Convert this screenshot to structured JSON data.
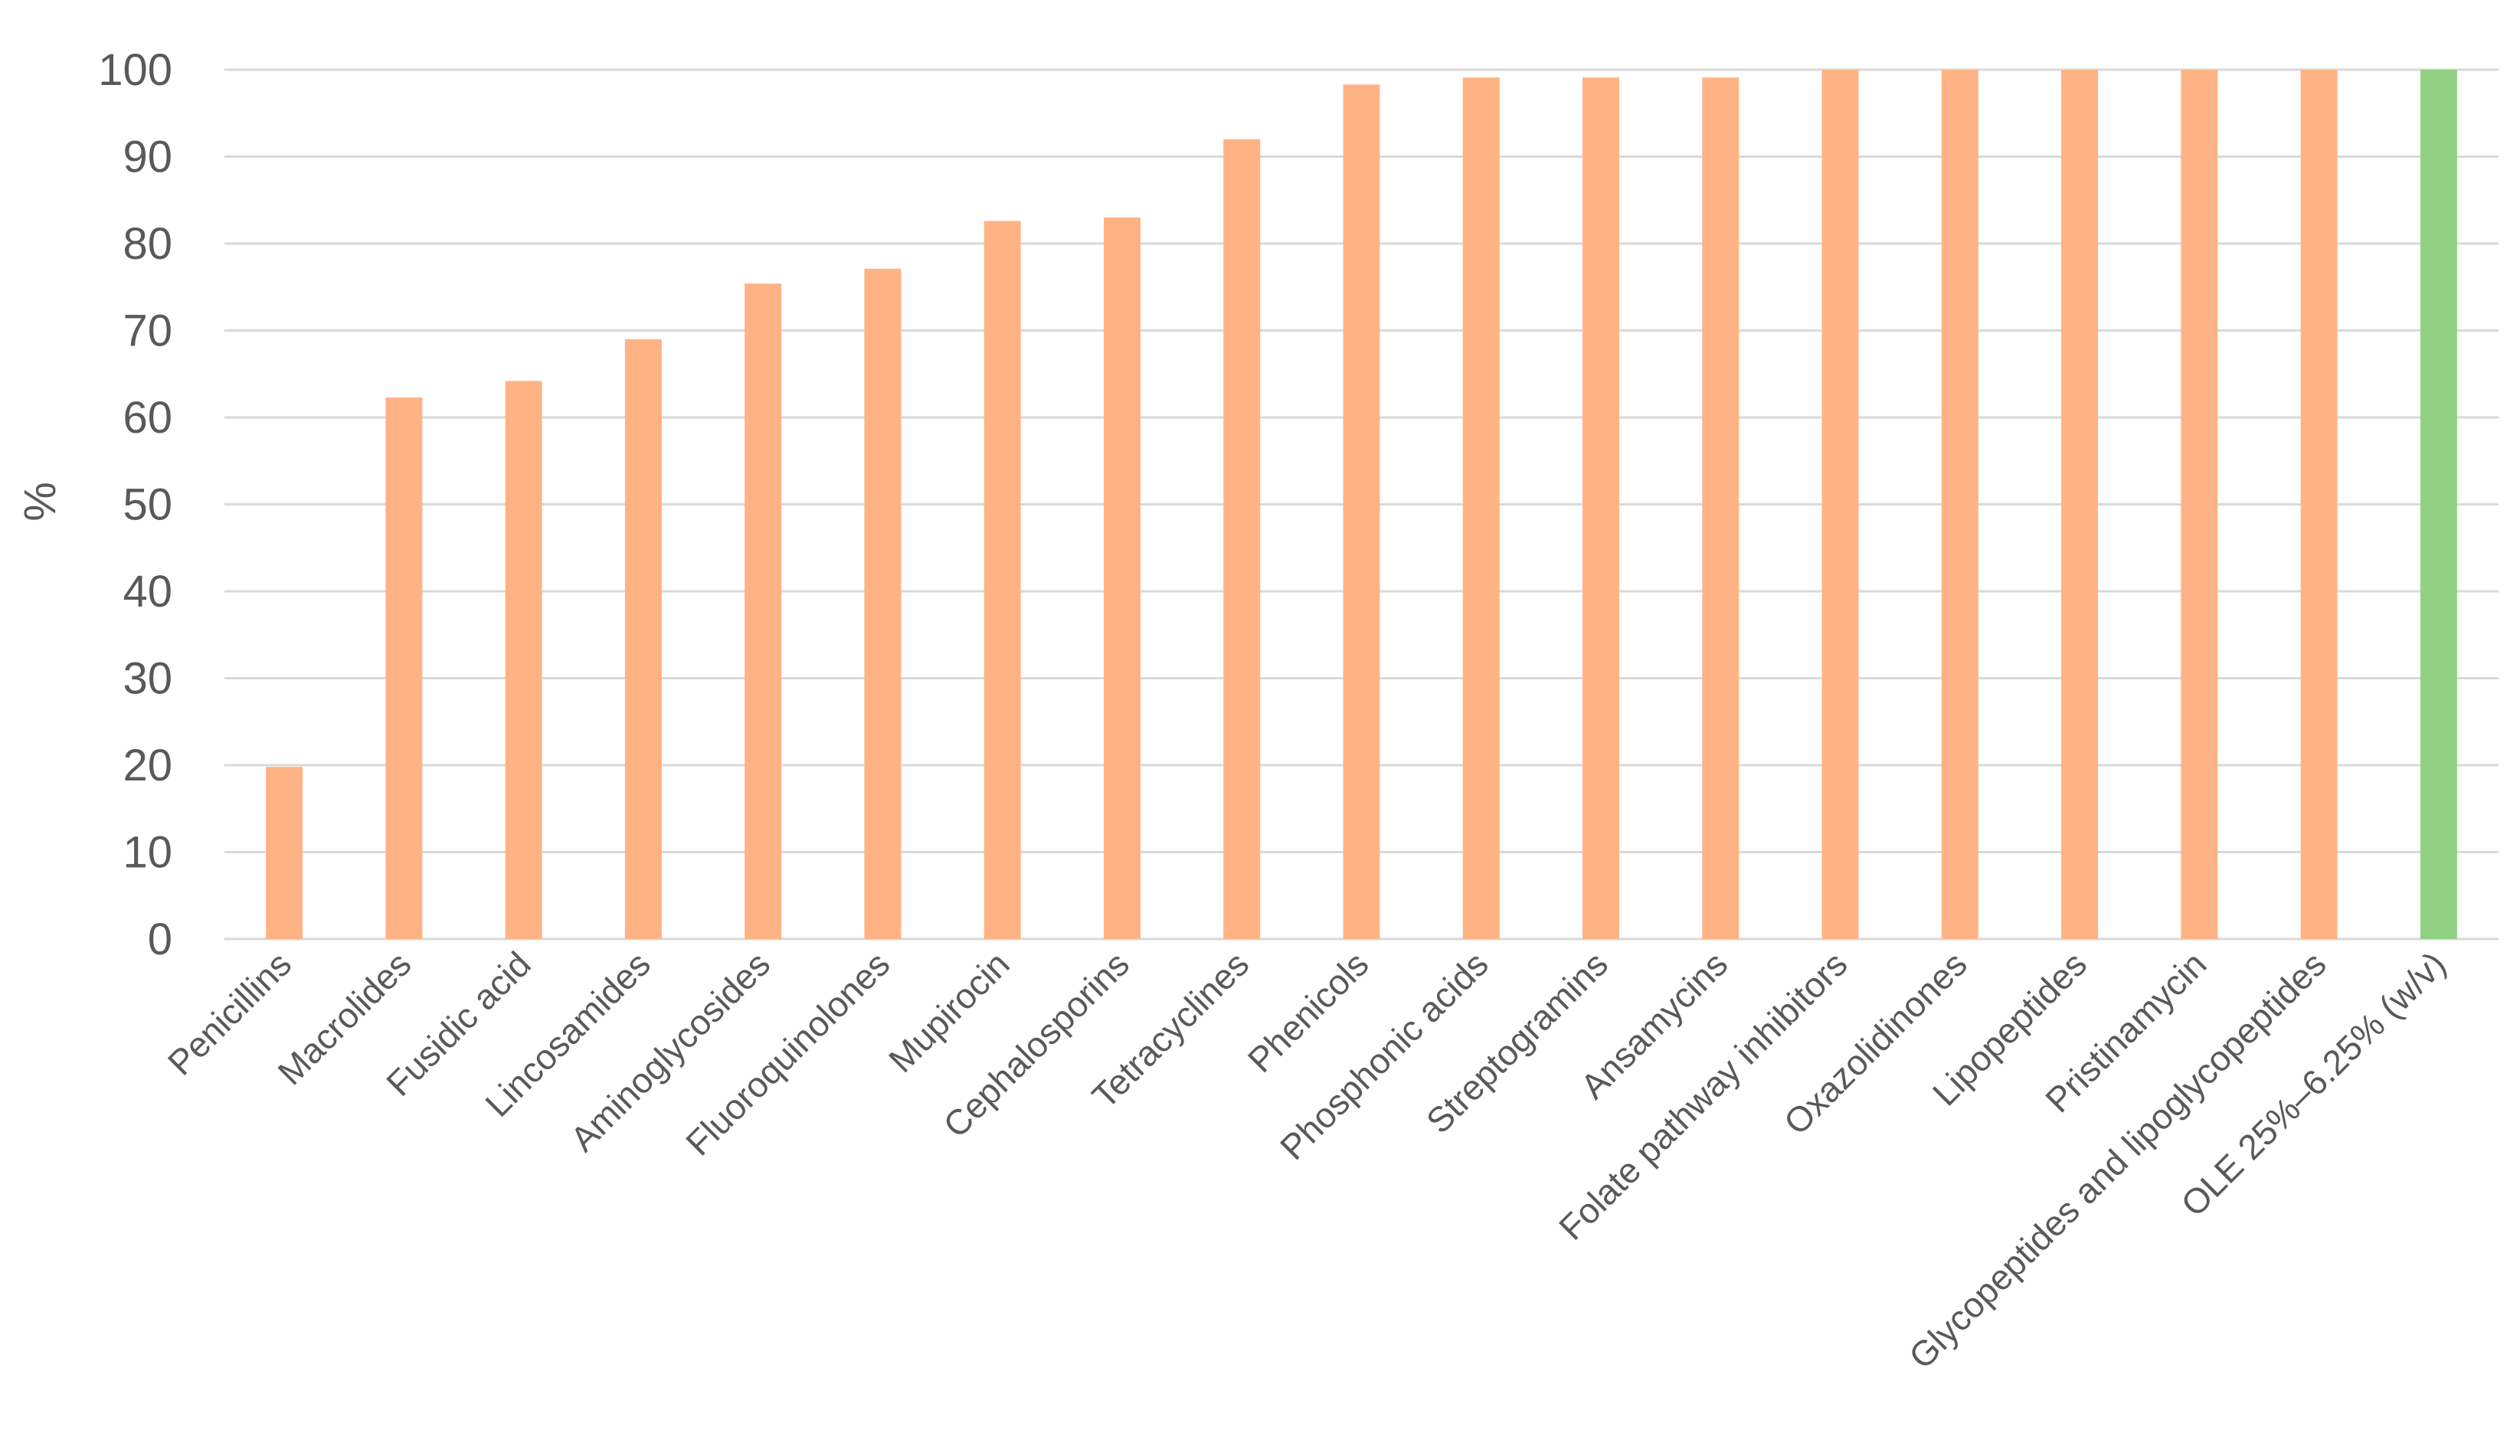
{
  "chart_data": {
    "type": "bar",
    "title": "",
    "xlabel": "",
    "ylabel": "%",
    "ylim": [
      0,
      100
    ],
    "yticks": [
      0,
      10,
      20,
      30,
      40,
      50,
      60,
      70,
      80,
      90,
      100
    ],
    "grid": true,
    "legend": "none",
    "categories": [
      "Penicillins",
      "Macrolides",
      "Fusidic acid",
      "Lincosamides",
      "Aminoglycosides",
      "Fluoroquinolones",
      "Mupirocin",
      "Cephalosporins",
      "Tetracyclines",
      "Phenicols",
      "Phosphonic acids",
      "Streptogramins",
      "Ansamycins",
      "Folate pathway inhibitors",
      "Oxazolidinones",
      "Lipopeptides",
      "Pristinamycin",
      "Glycopeptides and lipoglycopeptides",
      "OLE 25%–6.25% (w/v)"
    ],
    "values": [
      19.8,
      62.3,
      64.2,
      69.0,
      75.4,
      77.1,
      82.6,
      83.0,
      92.0,
      98.3,
      99.1,
      99.1,
      99.1,
      100,
      100,
      100,
      100,
      100,
      100
    ],
    "bar_colors": [
      "#ffb385",
      "#ffb385",
      "#ffb385",
      "#ffb385",
      "#ffb385",
      "#ffb385",
      "#ffb385",
      "#ffb385",
      "#ffb385",
      "#ffb385",
      "#ffb385",
      "#ffb385",
      "#ffb385",
      "#ffb385",
      "#ffb385",
      "#ffb385",
      "#ffb385",
      "#ffb385",
      "#92d184"
    ],
    "gridline_color": "#d9d9d9",
    "text_color": "#595959"
  }
}
